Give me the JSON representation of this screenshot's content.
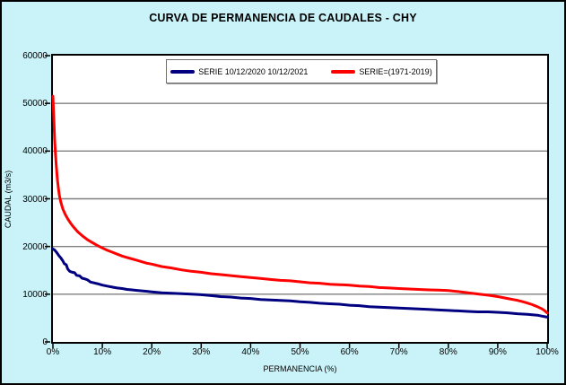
{
  "window": {
    "title": "CURVA DE PERMANENCIA DE CAUDALES - CHY"
  },
  "colors": {
    "background": "#c9f3f8",
    "plot_background": "#ffffff",
    "grid": "#808080",
    "axis": "#000000",
    "series_blue": "#000080",
    "series_red": "#ff0000"
  },
  "chart_data": {
    "type": "line",
    "title": "CURVA DE PERMANENCIA DE CAUDALES - CHY",
    "xlabel": "PERMANENCIA (%)",
    "ylabel": "CAUDAL (m3/s)",
    "xlim": [
      0,
      100
    ],
    "ylim": [
      0,
      60000
    ],
    "x_ticks": [
      0,
      10,
      20,
      30,
      40,
      50,
      60,
      70,
      80,
      90,
      100
    ],
    "x_tick_labels": [
      "0%",
      "10%",
      "20%",
      "30%",
      "40%",
      "50%",
      "60%",
      "70%",
      "80%",
      "90%",
      "100%"
    ],
    "y_ticks": [
      0,
      10000,
      20000,
      30000,
      40000,
      50000,
      60000
    ],
    "y_tick_labels": [
      "0",
      "10000",
      "20000",
      "30000",
      "40000",
      "50000",
      "60000"
    ],
    "grid": "horizontal-only",
    "grid_color": "#808080",
    "legend_position": "top-center-inside",
    "series": [
      {
        "name": "SERIE 10/12/2020 10/12/2021",
        "color": "#000080",
        "points": [
          [
            0,
            19500
          ],
          [
            0.4,
            19200
          ],
          [
            0.8,
            18700
          ],
          [
            1.2,
            18100
          ],
          [
            1.6,
            17600
          ],
          [
            2,
            17000
          ],
          [
            2.3,
            16400
          ],
          [
            2.7,
            16150
          ],
          [
            3,
            15300
          ],
          [
            3.4,
            14800
          ],
          [
            3.9,
            14600
          ],
          [
            4.4,
            14500
          ],
          [
            4.8,
            13950
          ],
          [
            5.4,
            13850
          ],
          [
            5.9,
            13350
          ],
          [
            6.5,
            13200
          ],
          [
            7,
            13000
          ],
          [
            7.6,
            12550
          ],
          [
            8.2,
            12400
          ],
          [
            9,
            12200
          ],
          [
            10,
            11900
          ],
          [
            11,
            11700
          ],
          [
            12,
            11500
          ],
          [
            13,
            11300
          ],
          [
            14,
            11200
          ],
          [
            15,
            11000
          ],
          [
            16,
            10900
          ],
          [
            17,
            10800
          ],
          [
            18,
            10700
          ],
          [
            19,
            10600
          ],
          [
            20,
            10500
          ],
          [
            22,
            10300
          ],
          [
            24,
            10200
          ],
          [
            26,
            10100
          ],
          [
            28,
            10000
          ],
          [
            30,
            9900
          ],
          [
            32,
            9700
          ],
          [
            34,
            9500
          ],
          [
            36,
            9400
          ],
          [
            38,
            9200
          ],
          [
            40,
            9100
          ],
          [
            42,
            8900
          ],
          [
            44,
            8800
          ],
          [
            46,
            8700
          ],
          [
            48,
            8600
          ],
          [
            50,
            8400
          ],
          [
            52,
            8300
          ],
          [
            54,
            8100
          ],
          [
            56,
            8000
          ],
          [
            58,
            7900
          ],
          [
            60,
            7700
          ],
          [
            62,
            7600
          ],
          [
            64,
            7400
          ],
          [
            66,
            7300
          ],
          [
            68,
            7200
          ],
          [
            70,
            7100
          ],
          [
            72,
            7000
          ],
          [
            74,
            6900
          ],
          [
            76,
            6800
          ],
          [
            78,
            6700
          ],
          [
            80,
            6600
          ],
          [
            82,
            6500
          ],
          [
            84,
            6400
          ],
          [
            86,
            6300
          ],
          [
            88,
            6300
          ],
          [
            90,
            6200
          ],
          [
            92,
            6100
          ],
          [
            94,
            5900
          ],
          [
            96,
            5800
          ],
          [
            98,
            5600
          ],
          [
            99,
            5400
          ],
          [
            100,
            5200
          ]
        ]
      },
      {
        "name": "SERIE=(1971-2019)",
        "color": "#ff0000",
        "points": [
          [
            0,
            51500
          ],
          [
            0.2,
            46500
          ],
          [
            0.35,
            42500
          ],
          [
            0.5,
            39500
          ],
          [
            0.7,
            36500
          ],
          [
            0.9,
            34000
          ],
          [
            1.1,
            32200
          ],
          [
            1.3,
            30700
          ],
          [
            1.6,
            29300
          ],
          [
            2,
            27900
          ],
          [
            2.5,
            26700
          ],
          [
            3,
            25800
          ],
          [
            3.5,
            25000
          ],
          [
            4,
            24300
          ],
          [
            4.5,
            23700
          ],
          [
            5,
            23100
          ],
          [
            6,
            22200
          ],
          [
            7,
            21400
          ],
          [
            8,
            20800
          ],
          [
            9,
            20200
          ],
          [
            10,
            19700
          ],
          [
            11,
            19200
          ],
          [
            12,
            18800
          ],
          [
            13,
            18400
          ],
          [
            14,
            18000
          ],
          [
            15,
            17700
          ],
          [
            16,
            17400
          ],
          [
            17,
            17100
          ],
          [
            18,
            16800
          ],
          [
            19,
            16500
          ],
          [
            20,
            16300
          ],
          [
            22,
            15800
          ],
          [
            24,
            15500
          ],
          [
            26,
            15100
          ],
          [
            28,
            14800
          ],
          [
            30,
            14600
          ],
          [
            32,
            14300
          ],
          [
            34,
            14100
          ],
          [
            36,
            13900
          ],
          [
            38,
            13700
          ],
          [
            40,
            13500
          ],
          [
            42,
            13300
          ],
          [
            44,
            13100
          ],
          [
            46,
            12900
          ],
          [
            48,
            12800
          ],
          [
            50,
            12600
          ],
          [
            52,
            12400
          ],
          [
            54,
            12300
          ],
          [
            56,
            12100
          ],
          [
            58,
            12000
          ],
          [
            60,
            11900
          ],
          [
            62,
            11700
          ],
          [
            64,
            11600
          ],
          [
            66,
            11400
          ],
          [
            68,
            11300
          ],
          [
            70,
            11200
          ],
          [
            72,
            11100
          ],
          [
            74,
            11000
          ],
          [
            76,
            10900
          ],
          [
            78,
            10850
          ],
          [
            80,
            10750
          ],
          [
            82,
            10550
          ],
          [
            84,
            10300
          ],
          [
            86,
            10050
          ],
          [
            88,
            9800
          ],
          [
            90,
            9500
          ],
          [
            92,
            9100
          ],
          [
            94,
            8700
          ],
          [
            95,
            8450
          ],
          [
            96,
            8150
          ],
          [
            97,
            7800
          ],
          [
            98,
            7400
          ],
          [
            99,
            6900
          ],
          [
            99.5,
            6550
          ],
          [
            100,
            6100
          ]
        ]
      }
    ]
  }
}
